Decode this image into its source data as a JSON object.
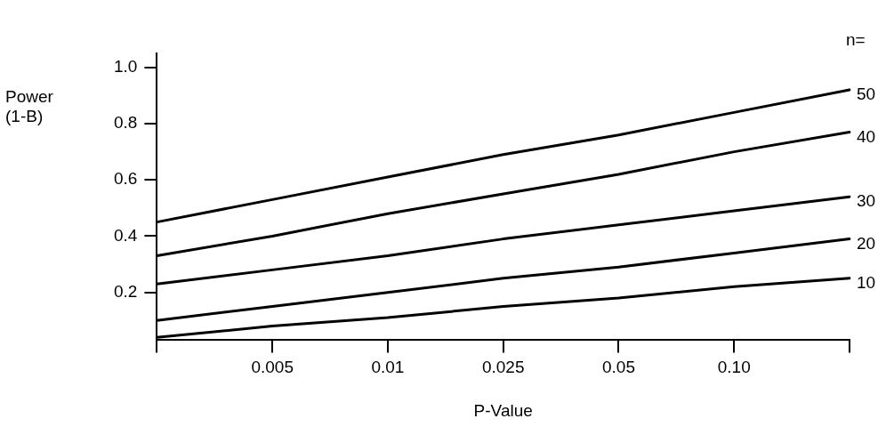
{
  "chart_data": {
    "type": "line",
    "xlabel": "P-Value",
    "ylabel": "Power (1-B)",
    "legend_title": "n=",
    "categories": [
      null,
      "0.005",
      "0.01",
      "0.025",
      "0.05",
      "0.10",
      null
    ],
    "series": [
      {
        "name": "50",
        "color": "#000000",
        "values": [
          0.45,
          0.53,
          0.61,
          0.69,
          0.76,
          0.84,
          0.92
        ]
      },
      {
        "name": "40",
        "color": "#000000",
        "values": [
          0.33,
          0.4,
          0.48,
          0.55,
          0.62,
          0.7,
          0.77
        ]
      },
      {
        "name": "30",
        "color": "#000000",
        "values": [
          0.23,
          0.28,
          0.33,
          0.39,
          0.44,
          0.49,
          0.54
        ]
      },
      {
        "name": "20",
        "color": "#000000",
        "values": [
          0.1,
          0.15,
          0.2,
          0.25,
          0.29,
          0.34,
          0.39
        ]
      },
      {
        "name": "10",
        "color": "#000000",
        "values": [
          0.04,
          0.08,
          0.11,
          0.15,
          0.18,
          0.22,
          0.25
        ]
      }
    ],
    "ylim": [
      0.03,
      1.05
    ],
    "yticks": [
      0.2,
      0.4,
      0.6,
      0.8,
      {
        "value": 1,
        "label": "1.0"
      }
    ],
    "grid": false,
    "legend": false,
    "marker": "none",
    "line_style": "solid"
  }
}
